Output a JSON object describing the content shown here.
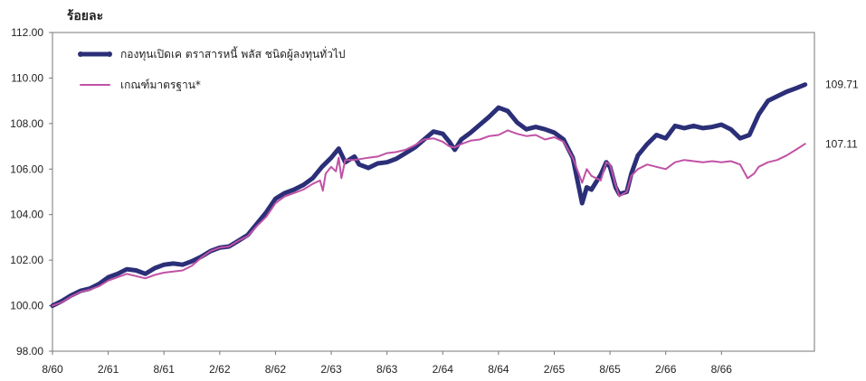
{
  "chart_data": {
    "type": "line",
    "ylabel": "ร้อยละ",
    "ylim": [
      98,
      112
    ],
    "yticks": [
      "98.00",
      "100.00",
      "102.00",
      "104.00",
      "106.00",
      "108.00",
      "110.00",
      "112.00"
    ],
    "xlim": [
      0,
      82
    ],
    "xticks": [
      {
        "label": "8/60",
        "x": 0
      },
      {
        "label": "2/61",
        "x": 6
      },
      {
        "label": "8/61",
        "x": 12
      },
      {
        "label": "2/62",
        "x": 18
      },
      {
        "label": "8/62",
        "x": 24
      },
      {
        "label": "2/63",
        "x": 30
      },
      {
        "label": "8/63",
        "x": 36
      },
      {
        "label": "2/64",
        "x": 42
      },
      {
        "label": "8/64",
        "x": 48
      },
      {
        "label": "2/65",
        "x": 54
      },
      {
        "label": "8/65",
        "x": 60
      },
      {
        "label": "2/66",
        "x": 66
      },
      {
        "label": "8/66",
        "x": 72
      }
    ],
    "legend_position": "top-left",
    "series": [
      {
        "name": "กองทุนเปิดเค ตราสารหนี้ พลัส ชนิดผู้ลงทุนทั่วไป",
        "color": "#2b2f78",
        "end_label": "109.71",
        "points": [
          [
            0,
            100.0
          ],
          [
            1,
            100.2
          ],
          [
            2,
            100.45
          ],
          [
            3,
            100.65
          ],
          [
            4,
            100.75
          ],
          [
            5,
            100.95
          ],
          [
            6,
            101.25
          ],
          [
            7,
            101.4
          ],
          [
            8,
            101.6
          ],
          [
            9,
            101.55
          ],
          [
            10,
            101.4
          ],
          [
            11,
            101.65
          ],
          [
            12,
            101.8
          ],
          [
            13,
            101.85
          ],
          [
            14,
            101.8
          ],
          [
            15,
            101.95
          ],
          [
            16,
            102.15
          ],
          [
            17,
            102.4
          ],
          [
            18,
            102.55
          ],
          [
            19,
            102.6
          ],
          [
            20,
            102.85
          ],
          [
            21,
            103.1
          ],
          [
            22,
            103.6
          ],
          [
            23,
            104.1
          ],
          [
            24,
            104.7
          ],
          [
            25,
            104.95
          ],
          [
            26,
            105.1
          ],
          [
            27,
            105.3
          ],
          [
            28,
            105.6
          ],
          [
            29,
            106.1
          ],
          [
            30,
            106.5
          ],
          [
            30.8,
            106.9
          ],
          [
            31.5,
            106.3
          ],
          [
            32.5,
            106.55
          ],
          [
            33,
            106.2
          ],
          [
            34,
            106.05
          ],
          [
            35,
            106.25
          ],
          [
            36,
            106.3
          ],
          [
            37,
            106.45
          ],
          [
            38,
            106.7
          ],
          [
            39,
            106.95
          ],
          [
            40,
            107.3
          ],
          [
            41,
            107.65
          ],
          [
            42,
            107.55
          ],
          [
            42.7,
            107.2
          ],
          [
            43.3,
            106.85
          ],
          [
            44,
            107.3
          ],
          [
            45,
            107.6
          ],
          [
            46,
            107.95
          ],
          [
            47,
            108.3
          ],
          [
            48,
            108.7
          ],
          [
            49,
            108.55
          ],
          [
            50,
            108.05
          ],
          [
            51,
            107.75
          ],
          [
            52,
            107.85
          ],
          [
            53,
            107.75
          ],
          [
            54,
            107.6
          ],
          [
            55,
            107.3
          ],
          [
            56,
            106.5
          ],
          [
            57,
            104.5
          ],
          [
            57.5,
            105.2
          ],
          [
            58,
            105.1
          ],
          [
            59,
            105.75
          ],
          [
            59.6,
            106.3
          ],
          [
            60,
            106.1
          ],
          [
            60.6,
            105.2
          ],
          [
            61,
            104.9
          ],
          [
            61.8,
            105.0
          ],
          [
            62.3,
            105.8
          ],
          [
            63,
            106.6
          ],
          [
            64,
            107.1
          ],
          [
            65,
            107.5
          ],
          [
            66,
            107.35
          ],
          [
            67,
            107.9
          ],
          [
            68,
            107.8
          ],
          [
            69,
            107.9
          ],
          [
            70,
            107.8
          ],
          [
            71,
            107.85
          ],
          [
            72,
            107.95
          ],
          [
            73,
            107.75
          ],
          [
            74,
            107.35
          ],
          [
            75,
            107.5
          ],
          [
            76,
            108.4
          ],
          [
            77,
            109.0
          ],
          [
            78,
            109.2
          ],
          [
            79,
            109.4
          ],
          [
            80,
            109.55
          ],
          [
            81,
            109.71
          ]
        ]
      },
      {
        "name": "เกณฑ์มาตรฐาน*",
        "color": "#c052a5",
        "end_label": "107.11",
        "points": [
          [
            0,
            100.0
          ],
          [
            1,
            100.15
          ],
          [
            2,
            100.4
          ],
          [
            3,
            100.6
          ],
          [
            4,
            100.7
          ],
          [
            5,
            100.85
          ],
          [
            6,
            101.1
          ],
          [
            7,
            101.25
          ],
          [
            8,
            101.4
          ],
          [
            9,
            101.3
          ],
          [
            10,
            101.2
          ],
          [
            11,
            101.35
          ],
          [
            12,
            101.45
          ],
          [
            13,
            101.5
          ],
          [
            14,
            101.55
          ],
          [
            15,
            101.75
          ],
          [
            16,
            102.1
          ],
          [
            17,
            102.4
          ],
          [
            18,
            102.55
          ],
          [
            19,
            102.6
          ],
          [
            20,
            102.85
          ],
          [
            21,
            103.05
          ],
          [
            22,
            103.5
          ],
          [
            23,
            103.9
          ],
          [
            24,
            104.5
          ],
          [
            25,
            104.8
          ],
          [
            26,
            104.95
          ],
          [
            27,
            105.1
          ],
          [
            28,
            105.35
          ],
          [
            28.8,
            105.5
          ],
          [
            29.1,
            105.05
          ],
          [
            29.4,
            105.8
          ],
          [
            30,
            106.1
          ],
          [
            30.5,
            105.9
          ],
          [
            30.8,
            106.5
          ],
          [
            31.1,
            105.6
          ],
          [
            31.5,
            106.4
          ],
          [
            32.5,
            106.4
          ],
          [
            34,
            106.5
          ],
          [
            35,
            106.55
          ],
          [
            36,
            106.7
          ],
          [
            37,
            106.75
          ],
          [
            38,
            106.85
          ],
          [
            39,
            107.05
          ],
          [
            40,
            107.3
          ],
          [
            41,
            107.35
          ],
          [
            42,
            107.2
          ],
          [
            42.7,
            107.0
          ],
          [
            43.3,
            106.95
          ],
          [
            44,
            107.1
          ],
          [
            45,
            107.25
          ],
          [
            46,
            107.3
          ],
          [
            47,
            107.45
          ],
          [
            48,
            107.5
          ],
          [
            49,
            107.7
          ],
          [
            50,
            107.55
          ],
          [
            51,
            107.45
          ],
          [
            52,
            107.5
          ],
          [
            53,
            107.3
          ],
          [
            54,
            107.4
          ],
          [
            55,
            107.2
          ],
          [
            56,
            106.5
          ],
          [
            57,
            105.4
          ],
          [
            57.5,
            106.0
          ],
          [
            58,
            105.7
          ],
          [
            59,
            105.5
          ],
          [
            59.6,
            106.3
          ],
          [
            60,
            106.2
          ],
          [
            60.6,
            105.3
          ],
          [
            61,
            104.8
          ],
          [
            61.8,
            105.0
          ],
          [
            62.3,
            105.7
          ],
          [
            63,
            106.0
          ],
          [
            64,
            106.2
          ],
          [
            65,
            106.1
          ],
          [
            66,
            106.0
          ],
          [
            67,
            106.3
          ],
          [
            68,
            106.4
          ],
          [
            69,
            106.35
          ],
          [
            70,
            106.3
          ],
          [
            71,
            106.35
          ],
          [
            72,
            106.3
          ],
          [
            73,
            106.35
          ],
          [
            74,
            106.2
          ],
          [
            74.8,
            105.6
          ],
          [
            75.5,
            105.8
          ],
          [
            76,
            106.1
          ],
          [
            77,
            106.3
          ],
          [
            78,
            106.4
          ],
          [
            79,
            106.6
          ],
          [
            80,
            106.85
          ],
          [
            81,
            107.11
          ]
        ]
      }
    ]
  }
}
